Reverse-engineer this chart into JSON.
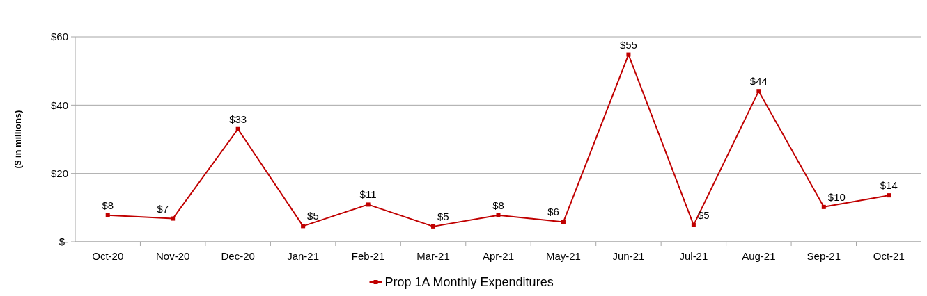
{
  "chart_data": {
    "type": "line",
    "ylabel": "($ in millions)",
    "categories": [
      "Oct-20",
      "Nov-20",
      "Dec-20",
      "Jan-21",
      "Feb-21",
      "Mar-21",
      "Apr-21",
      "May-21",
      "Jun-21",
      "Jul-21",
      "Aug-21",
      "Sep-21",
      "Oct-21"
    ],
    "series": [
      {
        "name": "Prop 1A Monthly Expenditures",
        "color": "#c00000",
        "values": [
          7.8,
          6.8,
          33,
          4.6,
          10.9,
          4.5,
          7.8,
          5.8,
          54.8,
          4.9,
          44.1,
          10.2,
          13.6
        ],
        "value_labels": [
          "$8",
          "$7",
          "$33",
          "$5",
          "$11",
          "$5",
          "$8",
          "$6",
          "$55",
          "$5",
          "$44",
          "$10",
          "$14"
        ]
      }
    ],
    "ylim": [
      0,
      60
    ],
    "yticks": [
      {
        "value": 0,
        "label": "$-"
      },
      {
        "value": 20,
        "label": "$20"
      },
      {
        "value": 40,
        "label": "$40"
      },
      {
        "value": 60,
        "label": "$60"
      }
    ],
    "grid": "y",
    "legend": "bottom",
    "marker": "square",
    "line_style": "solid"
  }
}
